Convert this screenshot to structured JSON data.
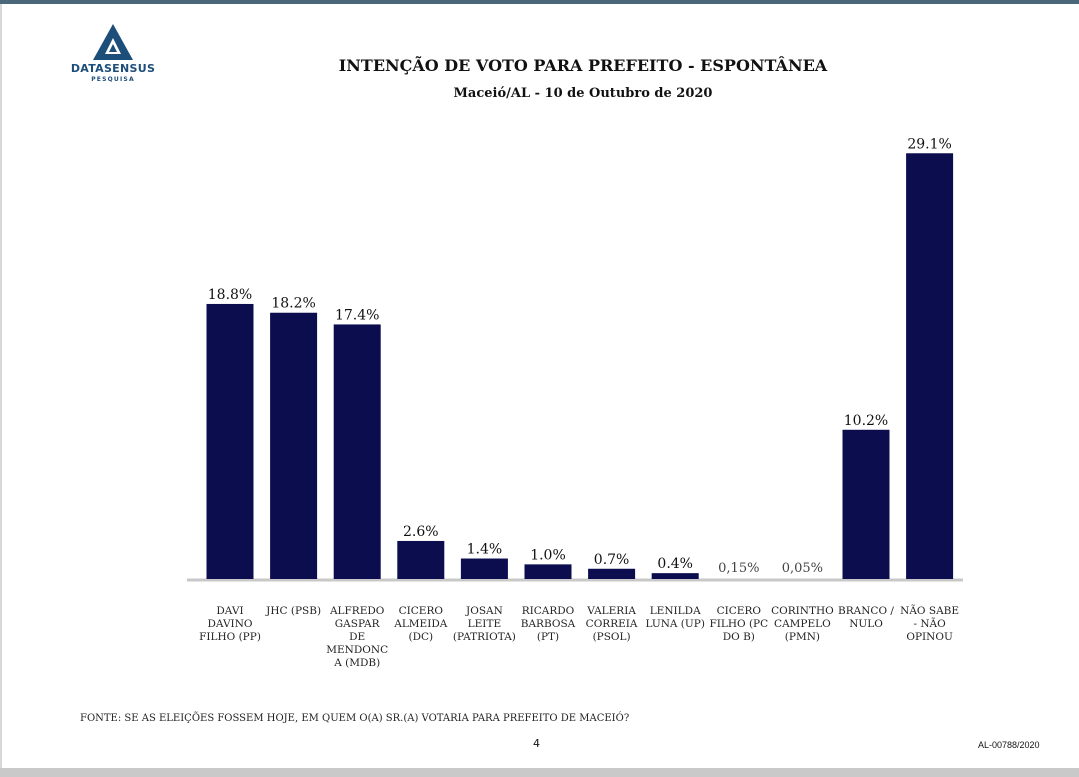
{
  "brand": {
    "name": "DATASENSUS",
    "tagline": "PESQUISA",
    "color": "#1d4e7a"
  },
  "header": {
    "title": "INTENÇÃO DE VOTO PARA PREFEITO - ESPONTÂNEA",
    "subtitle": "Maceió/AL - 10 de Outubro de 2020"
  },
  "chart_data": {
    "type": "bar",
    "title": "INTENÇÃO DE VOTO PARA PREFEITO - ESPONTÂNEA",
    "xlabel": "",
    "ylabel": "",
    "ylim": [
      0,
      30
    ],
    "grid": false,
    "bar_color": "#0b0d4e",
    "categories": [
      "DAVI DAVINO FILHO (PP)",
      "JHC (PSB)",
      "ALFREDO GASPAR DE MENDONCA (MDB)",
      "CICERO ALMEIDA (DC)",
      "JOSAN LEITE (PATRIOTA)",
      "RICARDO BARBOSA (PT)",
      "VALERIA CORREIA (PSOL)",
      "LENILDA LUNA (UP)",
      "CICERO FILHO (PC DO B)",
      "CORINTHO CAMPELO (PMN)",
      "BRANCO / NULO",
      "NÃO SABE - NÃO OPINOU"
    ],
    "values": [
      18.8,
      18.2,
      17.4,
      2.6,
      1.4,
      1.0,
      0.7,
      0.4,
      0.15,
      0.05,
      10.2,
      29.1
    ],
    "value_labels": [
      "18.8%",
      "18.2%",
      "17.4%",
      "2.6%",
      "1.4%",
      "1.0%",
      "0.7%",
      "0.4%",
      "0,15%",
      "0,05%",
      "10.2%",
      "29.1%"
    ],
    "drawn_bars": [
      true,
      true,
      true,
      true,
      true,
      true,
      true,
      true,
      false,
      false,
      true,
      true
    ]
  },
  "footer": {
    "source": "FONTE: SE AS ELEIÇÕES FOSSEM HOJE, EM QUEM O(A) SR.(A) VOTARIA PARA PREFEITO DE MACEIÓ?",
    "page": "4",
    "code": "AL-00788/2020"
  }
}
